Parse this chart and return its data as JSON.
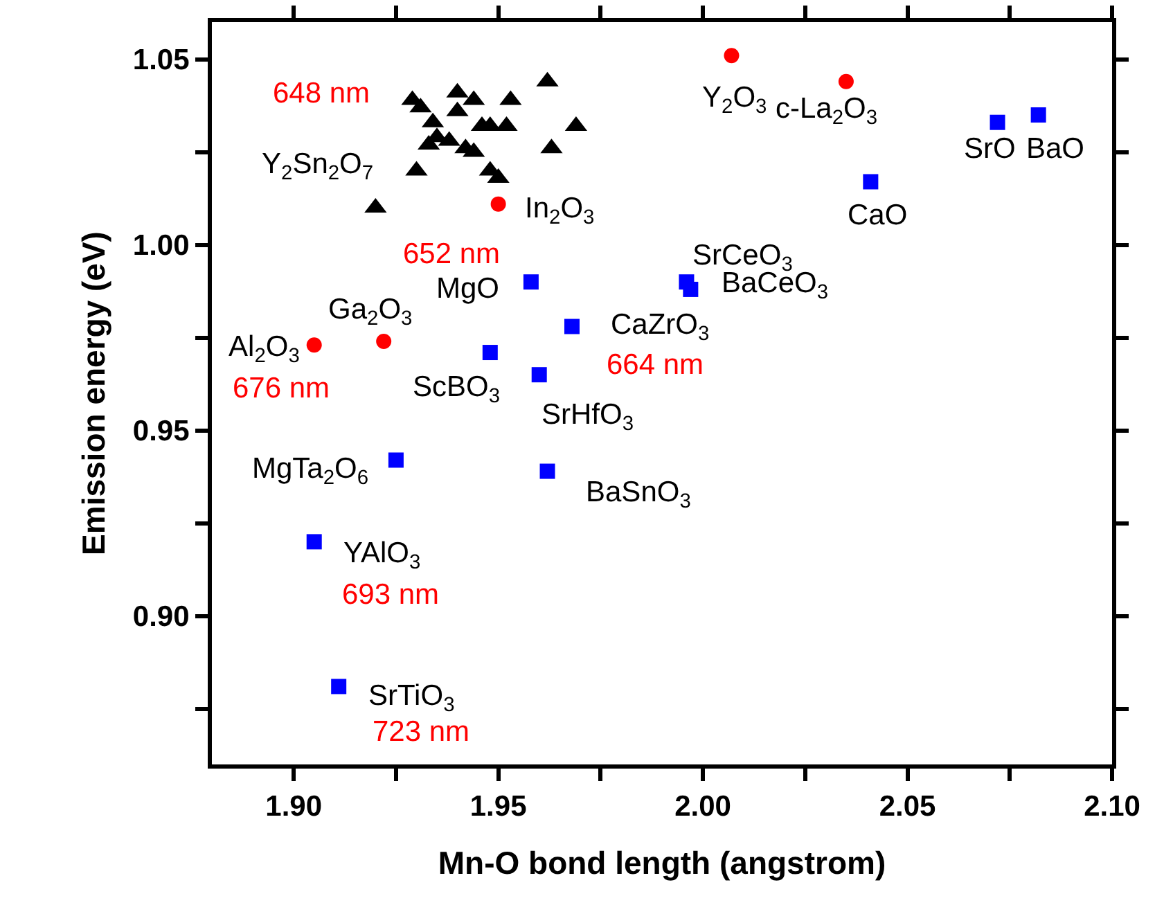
{
  "chart_data": {
    "type": "scatter",
    "xlabel": "Mn-O bond length (angstrom)",
    "ylabel": "Emission energy (eV)",
    "xlim": [
      1.88,
      2.1
    ],
    "ylim": [
      0.86,
      1.06
    ],
    "xticks": [
      {
        "value": 1.9,
        "label": "1.90"
      },
      {
        "value": 1.925,
        "label": null
      },
      1.95,
      {
        "value": 1.975,
        "label": null
      },
      {
        "value": 2.0,
        "label": "2.00"
      },
      {
        "value": 2.025,
        "label": null
      },
      2.05,
      {
        "value": 2.075,
        "label": null
      },
      {
        "value": 2.1,
        "label": "2.10"
      }
    ],
    "yticks": [
      {
        "value": 0.875,
        "label": null
      },
      {
        "value": 0.9,
        "label": "0.90"
      },
      {
        "value": 0.925,
        "label": null
      },
      0.95,
      {
        "value": 0.975,
        "label": null
      },
      {
        "value": 1.0,
        "label": "1.00"
      },
      {
        "value": 1.025,
        "label": null
      },
      1.05
    ],
    "series": [
      {
        "color": "#000000",
        "marker": "triangle",
        "x": [
          1.92,
          1.93,
          1.929,
          1.931,
          1.934,
          1.933,
          1.935,
          1.938,
          1.94,
          1.94,
          1.942,
          1.944,
          1.944,
          1.946,
          1.948,
          1.948,
          1.95,
          1.952,
          1.953,
          1.962,
          1.963,
          1.969
        ],
        "values": [
          1.01,
          1.02,
          1.039,
          1.037,
          1.033,
          1.027,
          1.029,
          1.028,
          1.041,
          1.036,
          1.026,
          1.039,
          1.025,
          1.032,
          1.032,
          1.02,
          1.018,
          1.032,
          1.039,
          1.044,
          1.026,
          1.032
        ]
      },
      {
        "color": "#ff0000",
        "marker": "circle",
        "x": [
          2.007,
          2.035,
          1.95,
          1.905,
          1.922
        ],
        "values": [
          1.051,
          1.044,
          1.011,
          0.973,
          0.974
        ]
      },
      {
        "color": "#0000ff",
        "marker": "square",
        "x": [
          2.072,
          2.082,
          2.041,
          1.996,
          1.997,
          1.968,
          1.958,
          1.948,
          1.96,
          1.925,
          1.962,
          1.905,
          1.911
        ],
        "values": [
          1.033,
          1.035,
          1.017,
          0.99,
          0.988,
          0.978,
          0.99,
          0.971,
          0.965,
          0.942,
          0.939,
          0.92,
          0.881
        ]
      }
    ],
    "annotations": [
      "648 nm",
      {
        "text": "Y$_{2}$Sn$_{2}$O$_{7}$",
        "x": 1.92,
        "y": 1.01
      },
      {
        "text": "In$_{2}$O$_{3}$",
        "x": 1.95,
        "y": 1.011
      },
      {
        "text": "652 nm",
        "x": 1.95,
        "y": 1.011
      },
      {
        "text": "Y$_{2}$O$_{3}$",
        "x": 2.007,
        "y": 1.051
      },
      {
        "text": "c-La$_{2}$O$_{3}$",
        "x": 2.035,
        "y": 1.044
      },
      {
        "text": "SrO",
        "x": 2.072,
        "y": 1.033
      },
      {
        "text": "BaO",
        "x": 2.082,
        "y": 1.035
      },
      {
        "text": "CaO",
        "x": 2.041,
        "y": 1.017
      },
      {
        "text": "SrCeO$_{3}$",
        "x": 1.996,
        "y": 0.99
      },
      {
        "text": "BaCeO$_{3}$",
        "x": 1.997,
        "y": 0.988
      },
      {
        "text": "MgO",
        "x": 1.958,
        "y": 0.99
      },
      {
        "text": "Ga$_{2}$O$_{3}$",
        "x": 1.922,
        "y": 0.974
      },
      {
        "text": "CaZrO$_{3}$",
        "x": 1.968,
        "y": 0.978
      },
      {
        "text": "Al$_{2}$O$_{3}$",
        "x": 1.905,
        "y": 0.973
      },
      {
        "text": "676 nm",
        "x": 1.905,
        "y": 0.973
      },
      {
        "text": "664 nm",
        "x": 1.968,
        "y": 0.978
      },
      {
        "text": "ScBO$_{3}$",
        "x": 1.948,
        "y": 0.971
      },
      {
        "text": "SrHfO$_{3}$",
        "x": 1.96,
        "y": 0.965
      },
      {
        "text": "MgTa$_{2}$O$_{6}$",
        "x": 1.925,
        "y": 0.942
      },
      {
        "text": "BaSnO$_{3}$",
        "x": 1.962,
        "y": 0.939
      },
      {
        "text": "YAlO$_{3}$",
        "x": 1.905,
        "y": 0.92
      },
      {
        "text": "693 nm",
        "x": 1.905,
        "y": 0.92
      },
      {
        "text": "SrTiO$_{3}$",
        "x": 1.911,
        "y": 0.881
      },
      {
        "text": "723 nm",
        "x": 1.911,
        "y": 0.881
      }
    ]
  }
}
